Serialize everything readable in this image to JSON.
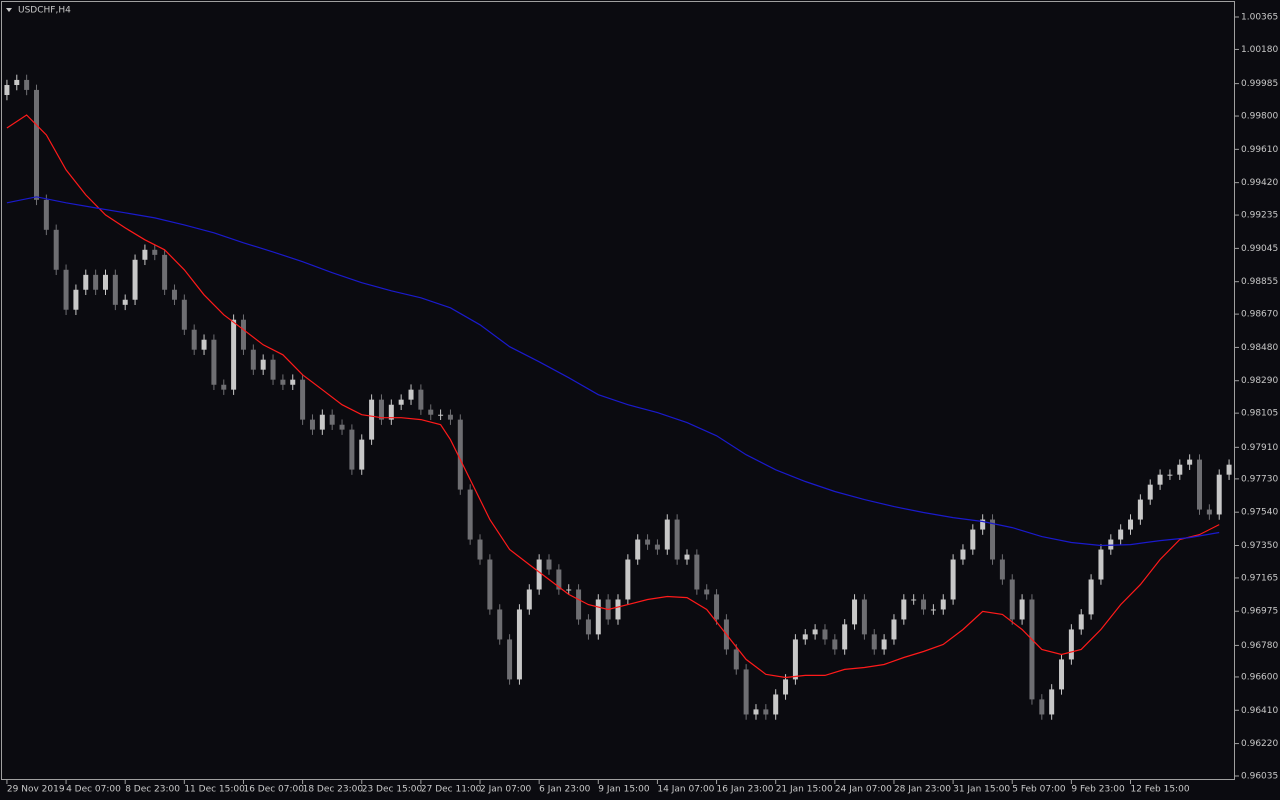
{
  "chart_data": {
    "type": "candlestick",
    "title": "USDCHF,H4",
    "categories": [
      "29 Nov 2019",
      null,
      null,
      null,
      null,
      null,
      "4 Dec 07:00",
      null,
      null,
      null,
      null,
      null,
      "8 Dec 23:00",
      null,
      null,
      null,
      null,
      null,
      "11 Dec 15:00",
      null,
      null,
      null,
      null,
      null,
      "16 Dec 07:00",
      null,
      null,
      null,
      null,
      null,
      "18 Dec 23:00",
      null,
      null,
      null,
      null,
      null,
      "23 Dec 15:00",
      null,
      null,
      null,
      null,
      null,
      "27 Dec 11:00",
      null,
      null,
      null,
      null,
      null,
      "2 Jan 07:00",
      null,
      null,
      null,
      null,
      null,
      "6 Jan 23:00",
      null,
      null,
      null,
      null,
      null,
      "9 Jan 15:00",
      null,
      null,
      null,
      null,
      null,
      "14 Jan 07:00",
      null,
      null,
      null,
      null,
      null,
      "16 Jan 23:00",
      null,
      null,
      null,
      null,
      null,
      "21 Jan 15:00",
      null,
      null,
      null,
      null,
      null,
      "24 Jan 07:00",
      null,
      null,
      null,
      null,
      null,
      "28 Jan 23:00",
      null,
      null,
      null,
      null,
      null,
      "31 Jan 15:00",
      null,
      null,
      null,
      null,
      null,
      "5 Feb 07:00",
      null,
      null,
      null,
      null,
      null,
      "9 Feb 23:00",
      null,
      null,
      null,
      null,
      null,
      "12 Feb 15:00",
      null,
      null,
      null,
      null,
      null,
      null,
      null,
      null,
      null,
      null
    ],
    "ohlc": [
      [
        0.9992,
        1.00007,
        0.9989,
        0.99977
      ],
      [
        0.99977,
        1.00036,
        0.99947,
        1.00006
      ],
      [
        1.00006,
        1.00036,
        0.99919,
        0.99949
      ],
      [
        0.99949,
        0.99979,
        0.99292,
        0.99322
      ],
      [
        0.99322,
        0.99352,
        0.99121,
        0.99151
      ],
      [
        0.99151,
        0.99181,
        0.98893,
        0.98923
      ],
      [
        0.98923,
        0.98953,
        0.98665,
        0.98695
      ],
      [
        0.98695,
        0.98839,
        0.98665,
        0.98809
      ],
      [
        0.98809,
        0.98924,
        0.98779,
        0.98894
      ],
      [
        0.98894,
        0.98924,
        0.98779,
        0.98809
      ],
      [
        0.98809,
        0.98924,
        0.98779,
        0.98894
      ],
      [
        0.98894,
        0.98924,
        0.98693,
        0.98723
      ],
      [
        0.98723,
        0.98782,
        0.98693,
        0.98752
      ],
      [
        0.98752,
        0.9901,
        0.98722,
        0.9898
      ],
      [
        0.9898,
        0.99067,
        0.9895,
        0.99037
      ],
      [
        0.99037,
        0.99067,
        0.98978,
        0.99008
      ],
      [
        0.99008,
        0.99038,
        0.98779,
        0.98809
      ],
      [
        0.98809,
        0.98839,
        0.98722,
        0.98752
      ],
      [
        0.98752,
        0.98782,
        0.98551,
        0.98581
      ],
      [
        0.98581,
        0.98611,
        0.98437,
        0.98467
      ],
      [
        0.98467,
        0.98554,
        0.98437,
        0.98524
      ],
      [
        0.98524,
        0.98554,
        0.98237,
        0.98267
      ],
      [
        0.98267,
        0.98297,
        0.98209,
        0.98239
      ],
      [
        0.98239,
        0.98668,
        0.98209,
        0.98638
      ],
      [
        0.98638,
        0.98668,
        0.98437,
        0.98467
      ],
      [
        0.98467,
        0.98497,
        0.98323,
        0.98353
      ],
      [
        0.98353,
        0.9844,
        0.98323,
        0.9841
      ],
      [
        0.9841,
        0.9844,
        0.98266,
        0.98296
      ],
      [
        0.98296,
        0.98326,
        0.98237,
        0.98267
      ],
      [
        0.98267,
        0.98326,
        0.98237,
        0.98296
      ],
      [
        0.98296,
        0.98326,
        0.98038,
        0.98068
      ],
      [
        0.98068,
        0.98098,
        0.97981,
        0.98011
      ],
      [
        0.98011,
        0.98126,
        0.97981,
        0.98096
      ],
      [
        0.98096,
        0.98126,
        0.98009,
        0.98039
      ],
      [
        0.98039,
        0.98069,
        0.97981,
        0.98011
      ],
      [
        0.98011,
        0.98041,
        0.97753,
        0.97783
      ],
      [
        0.97783,
        0.97984,
        0.97753,
        0.97954
      ],
      [
        0.97954,
        0.98212,
        0.97924,
        0.98182
      ],
      [
        0.98182,
        0.98212,
        0.98038,
        0.98068
      ],
      [
        0.98068,
        0.98183,
        0.98038,
        0.98153
      ],
      [
        0.98153,
        0.98212,
        0.98123,
        0.98182
      ],
      [
        0.98182,
        0.98269,
        0.98152,
        0.98239
      ],
      [
        0.98239,
        0.98269,
        0.98095,
        0.98125
      ],
      [
        0.98125,
        0.98155,
        0.98066,
        0.98096
      ],
      [
        0.98096,
        0.98126,
        0.98066,
        0.98096
      ],
      [
        0.98096,
        0.98126,
        0.98038,
        0.98068
      ],
      [
        0.98068,
        0.98098,
        0.97639,
        0.97669
      ],
      [
        0.97669,
        0.97699,
        0.97354,
        0.97384
      ],
      [
        0.97384,
        0.97414,
        0.9724,
        0.9727
      ],
      [
        0.9727,
        0.973,
        0.96955,
        0.96985
      ],
      [
        0.96985,
        0.97015,
        0.96784,
        0.96814
      ],
      [
        0.96814,
        0.96844,
        0.96556,
        0.96586
      ],
      [
        0.96586,
        0.97015,
        0.96556,
        0.96985
      ],
      [
        0.96985,
        0.97129,
        0.96955,
        0.97099
      ],
      [
        0.97099,
        0.973,
        0.97069,
        0.9727
      ],
      [
        0.9727,
        0.973,
        0.97183,
        0.97213
      ],
      [
        0.97213,
        0.97243,
        0.97069,
        0.97099
      ],
      [
        0.97099,
        0.97129,
        0.97069,
        0.97099
      ],
      [
        0.97099,
        0.97129,
        0.96898,
        0.96928
      ],
      [
        0.96928,
        0.96958,
        0.96813,
        0.96843
      ],
      [
        0.96843,
        0.97072,
        0.96813,
        0.97042
      ],
      [
        0.97042,
        0.97072,
        0.96898,
        0.96928
      ],
      [
        0.96928,
        0.97072,
        0.96898,
        0.97042
      ],
      [
        0.97042,
        0.973,
        0.97012,
        0.9727
      ],
      [
        0.9727,
        0.97414,
        0.9724,
        0.97384
      ],
      [
        0.97384,
        0.97414,
        0.97325,
        0.97355
      ],
      [
        0.97355,
        0.97385,
        0.97297,
        0.97327
      ],
      [
        0.97327,
        0.97528,
        0.97297,
        0.97498
      ],
      [
        0.97498,
        0.97528,
        0.9724,
        0.9727
      ],
      [
        0.9727,
        0.97328,
        0.9724,
        0.97298
      ],
      [
        0.97298,
        0.97328,
        0.97069,
        0.97099
      ],
      [
        0.97099,
        0.97129,
        0.97041,
        0.97071
      ],
      [
        0.97071,
        0.97101,
        0.96898,
        0.96928
      ],
      [
        0.96928,
        0.96958,
        0.96727,
        0.96757
      ],
      [
        0.96757,
        0.96787,
        0.96613,
        0.96643
      ],
      [
        0.96643,
        0.96673,
        0.96356,
        0.96386
      ],
      [
        0.96386,
        0.96445,
        0.96356,
        0.96415
      ],
      [
        0.96415,
        0.96445,
        0.96356,
        0.96386
      ],
      [
        0.96386,
        0.9653,
        0.96356,
        0.965
      ],
      [
        0.965,
        0.96616,
        0.9647,
        0.96586
      ],
      [
        0.96586,
        0.96844,
        0.96556,
        0.96814
      ],
      [
        0.96814,
        0.96873,
        0.96784,
        0.96843
      ],
      [
        0.96843,
        0.96901,
        0.96813,
        0.96871
      ],
      [
        0.96871,
        0.96901,
        0.96784,
        0.96814
      ],
      [
        0.96814,
        0.96844,
        0.96727,
        0.96757
      ],
      [
        0.96757,
        0.9693,
        0.96727,
        0.969
      ],
      [
        0.969,
        0.97072,
        0.9687,
        0.97042
      ],
      [
        0.97042,
        0.97072,
        0.96813,
        0.96843
      ],
      [
        0.96843,
        0.96873,
        0.96727,
        0.96757
      ],
      [
        0.96757,
        0.96844,
        0.96727,
        0.96814
      ],
      [
        0.96814,
        0.96958,
        0.96784,
        0.96928
      ],
      [
        0.96928,
        0.97072,
        0.96898,
        0.97042
      ],
      [
        0.97042,
        0.97072,
        0.97012,
        0.97042
      ],
      [
        0.97042,
        0.97072,
        0.96955,
        0.96985
      ],
      [
        0.96985,
        0.97015,
        0.96955,
        0.96985
      ],
      [
        0.96985,
        0.97072,
        0.96955,
        0.97042
      ],
      [
        0.97042,
        0.973,
        0.97012,
        0.9727
      ],
      [
        0.9727,
        0.97357,
        0.9724,
        0.97327
      ],
      [
        0.97327,
        0.97471,
        0.97297,
        0.97441
      ],
      [
        0.97441,
        0.97528,
        0.97411,
        0.97498
      ],
      [
        0.97498,
        0.97528,
        0.9724,
        0.9727
      ],
      [
        0.9727,
        0.973,
        0.97126,
        0.97156
      ],
      [
        0.97156,
        0.97186,
        0.96898,
        0.96928
      ],
      [
        0.96928,
        0.97072,
        0.96898,
        0.97042
      ],
      [
        0.97042,
        0.97072,
        0.96442,
        0.96472
      ],
      [
        0.96472,
        0.96502,
        0.96356,
        0.96386
      ],
      [
        0.96386,
        0.96559,
        0.96356,
        0.96529
      ],
      [
        0.96529,
        0.9673,
        0.96499,
        0.967
      ],
      [
        0.967,
        0.96901,
        0.9667,
        0.96871
      ],
      [
        0.96871,
        0.96987,
        0.96841,
        0.96957
      ],
      [
        0.96957,
        0.97186,
        0.96927,
        0.97156
      ],
      [
        0.97156,
        0.97357,
        0.97126,
        0.97327
      ],
      [
        0.97327,
        0.97414,
        0.97297,
        0.97384
      ],
      [
        0.97384,
        0.97471,
        0.97354,
        0.97441
      ],
      [
        0.97441,
        0.97528,
        0.97411,
        0.97498
      ],
      [
        0.97498,
        0.97642,
        0.97468,
        0.97612
      ],
      [
        0.97612,
        0.97727,
        0.97582,
        0.97697
      ],
      [
        0.97697,
        0.97784,
        0.97667,
        0.97754
      ],
      [
        0.97754,
        0.97784,
        0.97724,
        0.97754
      ],
      [
        0.97754,
        0.97841,
        0.97724,
        0.97811
      ],
      [
        0.97811,
        0.9787,
        0.97781,
        0.9784
      ],
      [
        0.9784,
        0.9787,
        0.97525,
        0.97555
      ],
      [
        0.97555,
        0.97585,
        0.97497,
        0.97527
      ],
      [
        0.97527,
        0.97784,
        0.97497,
        0.97754
      ],
      [
        0.97754,
        0.97841,
        0.97724,
        0.97811
      ]
    ],
    "up_color": "#c8c8c8",
    "down_color": "#6e6e72",
    "lines": [
      {
        "color": "#ff1a1a",
        "x": [
          0,
          2,
          4,
          6,
          8,
          10,
          12,
          14,
          16,
          18,
          20,
          22,
          24,
          26,
          28,
          30,
          32,
          34,
          36,
          38,
          40,
          42,
          44,
          45,
          47,
          49,
          51,
          53,
          55,
          57,
          59,
          61,
          63,
          65,
          67,
          69,
          71,
          73,
          75,
          77,
          79,
          81,
          83,
          85,
          87,
          89,
          91,
          93,
          95,
          97,
          99,
          101,
          103,
          105,
          107,
          109,
          111,
          113,
          115,
          117,
          119,
          121,
          123
        ],
        "values": [
          0.99732,
          0.99806,
          0.99692,
          0.99493,
          0.9935,
          0.99236,
          0.99162,
          0.99094,
          0.99037,
          0.98923,
          0.9878,
          0.98666,
          0.98581,
          0.98495,
          0.98438,
          0.98324,
          0.98239,
          0.98153,
          0.98096,
          0.98079,
          0.98079,
          0.98068,
          0.98039,
          0.97954,
          0.97726,
          0.97498,
          0.97327,
          0.97241,
          0.97156,
          0.97071,
          0.97013,
          0.96985,
          0.97013,
          0.97042,
          0.97059,
          0.97053,
          0.96985,
          0.96843,
          0.967,
          0.96615,
          0.96597,
          0.96609,
          0.96609,
          0.96643,
          0.96654,
          0.96671,
          0.96711,
          0.96745,
          0.96785,
          0.96871,
          0.96974,
          0.96957,
          0.96871,
          0.96757,
          0.96728,
          0.96757,
          0.96871,
          0.97013,
          0.97127,
          0.9727,
          0.97384,
          0.97412,
          0.97469
        ]
      },
      {
        "color": "#1a1acc",
        "x": [
          0,
          3,
          6,
          9,
          12,
          15,
          18,
          21,
          24,
          27,
          30,
          33,
          36,
          39,
          42,
          45,
          48,
          51,
          54,
          57,
          60,
          63,
          66,
          69,
          72,
          75,
          78,
          81,
          84,
          87,
          90,
          93,
          96,
          99,
          102,
          105,
          108,
          111,
          114,
          117,
          120,
          123
        ],
        "values": [
          0.99305,
          0.99339,
          0.99305,
          0.99276,
          0.99248,
          0.99219,
          0.99179,
          0.99134,
          0.99077,
          0.99025,
          0.98969,
          0.98906,
          0.98849,
          0.98803,
          0.98763,
          0.98706,
          0.98609,
          0.98484,
          0.98398,
          0.98307,
          0.9821,
          0.98153,
          0.98108,
          0.98051,
          0.97976,
          0.97868,
          0.97782,
          0.97715,
          0.97658,
          0.97612,
          0.97572,
          0.97538,
          0.97509,
          0.97487,
          0.97452,
          0.97401,
          0.97367,
          0.9735,
          0.97355,
          0.97378,
          0.97395,
          0.97424
        ]
      }
    ],
    "ylim": [
      0.96035,
      1.00365
    ],
    "yticks": [
      1.00365,
      {
        "value": 1.0018,
        "label": "1.00180"
      },
      0.99985,
      {
        "value": 0.998,
        "label": "0.99800"
      },
      {
        "value": 0.9961,
        "label": "0.99610"
      },
      {
        "value": 0.9942,
        "label": "0.99420"
      },
      0.99235,
      0.99045,
      0.98855,
      {
        "value": 0.9867,
        "label": "0.98670"
      },
      {
        "value": 0.9848,
        "label": "0.98480"
      },
      {
        "value": 0.9829,
        "label": "0.98290"
      },
      0.98105,
      {
        "value": 0.9791,
        "label": "0.97910"
      },
      {
        "value": 0.9773,
        "label": "0.97730"
      },
      {
        "value": 0.9754,
        "label": "0.97540"
      },
      {
        "value": 0.9735,
        "label": "0.97350"
      },
      0.97165,
      0.96975,
      {
        "value": 0.9678,
        "label": "0.96780"
      },
      {
        "value": 0.966,
        "label": "0.96600"
      },
      {
        "value": 0.9641,
        "label": "0.96410"
      },
      {
        "value": 0.9622,
        "label": "0.96220"
      },
      0.96035
    ]
  }
}
